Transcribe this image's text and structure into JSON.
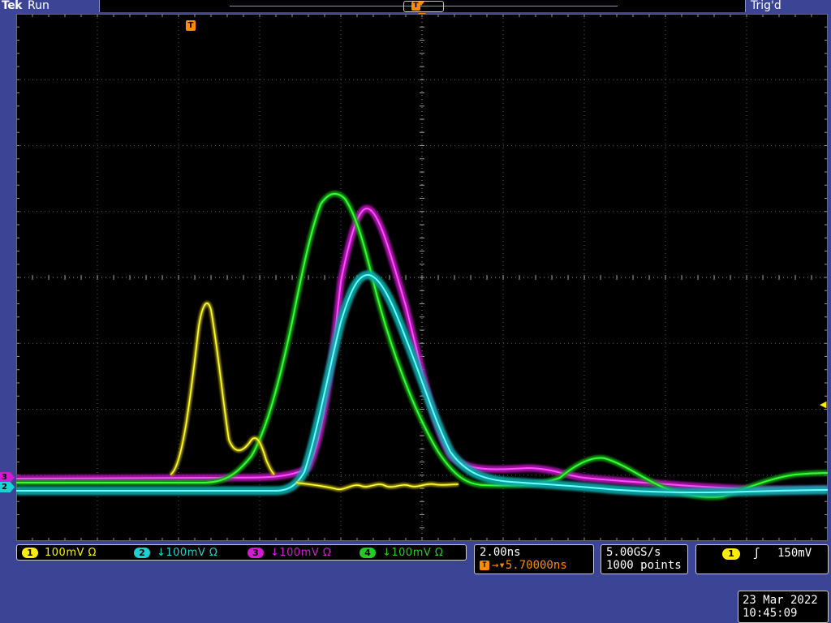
{
  "header": {
    "brand": "Tek",
    "run_state": "Run",
    "trigger_state": "Trig'd",
    "record_marker_label": "T"
  },
  "graticule": {
    "trigger_marker_label": "T",
    "channel_markers": [
      {
        "id": "3",
        "color": "#d21ad2"
      },
      {
        "id": "2",
        "color": "#1ad2d2"
      }
    ]
  },
  "channels": [
    {
      "num": "1",
      "label": "100mV Ω",
      "color": "#ffee00"
    },
    {
      "num": "2",
      "label": "↓100mV Ω",
      "color": "#1ad2d2"
    },
    {
      "num": "3",
      "label": "↓100mV Ω",
      "color": "#d21ad2"
    },
    {
      "num": "4",
      "label": "↓100mV Ω",
      "color": "#22cc22"
    }
  ],
  "timebase": {
    "scale": "2.00ns",
    "delay_icon": "T",
    "delay": "→▾5.70000ns"
  },
  "acquisition": {
    "sample_rate": "5.00GS/s",
    "record_length": "1000 points"
  },
  "trigger": {
    "source": "1",
    "slope_icon": "rising-edge-icon",
    "slope_glyph": "ʃ",
    "level": "150mV"
  },
  "datetime": {
    "date": "23 Mar 2022",
    "time": "10:45:09"
  }
}
